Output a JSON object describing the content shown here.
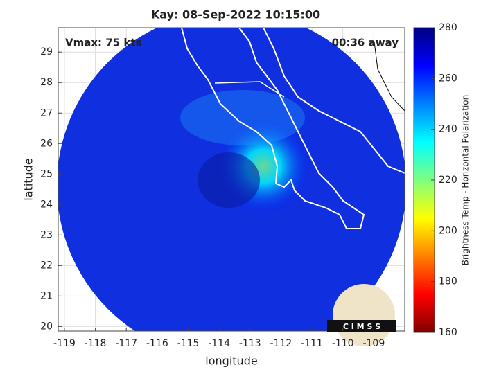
{
  "chart_data": {
    "type": "image",
    "title": "Kay: 08-Sep-2022 10:15:00",
    "annotations": [
      "Vmax: 75 kts",
      "00:36 away"
    ],
    "x_label": "longitude",
    "y_label": "latitude",
    "xlim": [
      -119.2,
      -108
    ],
    "ylim": [
      19.85,
      29.8
    ],
    "xticks": [
      -119,
      -118,
      -117,
      -116,
      -115,
      -114,
      -113,
      -112,
      -111,
      -110,
      -109
    ],
    "yticks": [
      20,
      21,
      22,
      23,
      24,
      25,
      26,
      27,
      28,
      29
    ],
    "grid": true,
    "colorbar": {
      "label": "Brightness Temp - Horizontal Polarization",
      "lim": [
        160,
        280
      ],
      "ticks": [
        160,
        180,
        200,
        220,
        240,
        260,
        280
      ],
      "colormap": [
        "#800000",
        "#ff0000",
        "#ff8000",
        "#ffff00",
        "#80ff80",
        "#00ffff",
        "#0080ff",
        "#0000ff",
        "#000080"
      ]
    },
    "logo": "C I M S S"
  }
}
